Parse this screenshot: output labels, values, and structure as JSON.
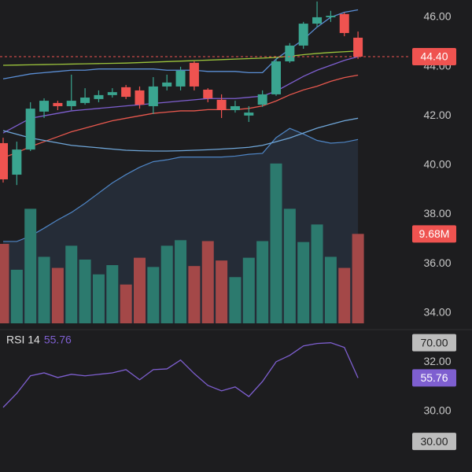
{
  "chart_data": [
    {
      "type": "candlestick",
      "open": [
        40.89,
        39.61,
        40.63,
        42.17,
        42.52,
        42.39,
        42.52,
        42.68,
        42.84,
        43.16,
        43.03,
        42.39,
        43.19,
        43.19,
        44.15,
        43.06,
        42.65,
        42.23,
        42.01,
        42.45,
        42.87,
        44.21,
        44.85,
        45.74,
        46.0,
        46.13,
        45.17
      ],
      "high": [
        41.11,
        40.95,
        42.55,
        42.71,
        42.61,
        43.67,
        43.12,
        43.03,
        43.12,
        43.25,
        43.19,
        43.57,
        43.67,
        43.99,
        44.21,
        43.12,
        42.87,
        42.61,
        42.39,
        43.03,
        44.31,
        44.95,
        45.81,
        46.64,
        46.26,
        46.19,
        45.42
      ],
      "low": [
        39.29,
        39.19,
        40.57,
        41.91,
        42.23,
        42.23,
        42.45,
        42.55,
        42.74,
        42.68,
        42.29,
        42.07,
        43.03,
        43.03,
        43.03,
        42.55,
        41.91,
        42.13,
        41.75,
        42.36,
        42.81,
        44.15,
        44.72,
        45.6,
        45.81,
        45.23,
        44.31
      ],
      "close": [
        39.42,
        40.63,
        42.29,
        42.61,
        42.39,
        42.61,
        42.74,
        42.84,
        42.96,
        42.77,
        42.45,
        43.19,
        43.35,
        43.83,
        43.19,
        42.71,
        42.23,
        42.39,
        42.13,
        42.87,
        44.21,
        44.85,
        45.74,
        46.0,
        46.06,
        45.36,
        44.4
      ],
      "up_color": "#3aa590",
      "down_color": "#ef5350",
      "ylim": [
        30,
        46.7
      ],
      "yticks": [
        {
          "value": 46,
          "label": "46.00"
        },
        {
          "value": 44,
          "label": "44.00"
        },
        {
          "value": 42,
          "label": "42.00"
        },
        {
          "value": 40,
          "label": "40.00"
        },
        {
          "value": 38,
          "label": "38.00"
        },
        {
          "value": 36,
          "label": "36.00"
        },
        {
          "value": 34,
          "label": "34.00"
        },
        {
          "value": 32,
          "label": "32.00"
        },
        {
          "value": 30,
          "label": "30.00"
        }
      ],
      "last_price_label": "44.40",
      "overlays": [
        {
          "color": "#5b8fd6",
          "values": [
            43.5,
            43.6,
            43.7,
            43.75,
            43.8,
            43.85,
            43.85,
            43.9,
            43.9,
            43.9,
            43.9,
            43.9,
            43.85,
            43.85,
            43.85,
            43.8,
            43.8,
            43.8,
            43.75,
            43.75,
            44.3,
            44.7,
            45.1,
            45.6,
            46.0,
            46.2,
            46.3
          ]
        },
        {
          "color": "#7e5fd0",
          "values": [
            41.3,
            41.6,
            41.9,
            42.0,
            42.1,
            42.2,
            42.25,
            42.3,
            42.35,
            42.4,
            42.45,
            42.5,
            42.55,
            42.6,
            42.65,
            42.7,
            42.7,
            42.7,
            42.75,
            42.8,
            43.0,
            43.3,
            43.6,
            43.85,
            44.05,
            44.25,
            44.4
          ]
        },
        {
          "color": "#e8584e",
          "values": [
            40.3,
            40.5,
            40.75,
            40.95,
            41.15,
            41.35,
            41.5,
            41.65,
            41.8,
            41.9,
            42.0,
            42.1,
            42.15,
            42.2,
            42.2,
            42.25,
            42.25,
            42.25,
            42.3,
            42.4,
            42.6,
            42.85,
            43.05,
            43.2,
            43.4,
            43.55,
            43.65
          ]
        },
        {
          "color": "#9cc43c",
          "values": [
            44.05,
            44.06,
            44.07,
            44.08,
            44.09,
            44.1,
            44.11,
            44.12,
            44.13,
            44.14,
            44.16,
            44.18,
            44.2,
            44.22,
            44.24,
            44.26,
            44.28,
            44.3,
            44.32,
            44.34,
            44.37,
            44.42,
            44.48,
            44.53,
            44.57,
            44.6,
            44.63
          ]
        },
        {
          "color": "#6fa6d8",
          "values": [
            41.4,
            41.25,
            41.1,
            41.0,
            40.9,
            40.8,
            40.75,
            40.7,
            40.65,
            40.6,
            40.58,
            40.57,
            40.57,
            40.58,
            40.6,
            40.62,
            40.65,
            40.68,
            40.72,
            40.8,
            40.95,
            41.1,
            41.3,
            41.5,
            41.65,
            41.8,
            41.9
          ]
        }
      ],
      "volume": [
        8.6,
        5.8,
        12.4,
        7.2,
        6.0,
        8.4,
        6.9,
        5.3,
        6.3,
        4.2,
        7.1,
        6.1,
        8.4,
        9.0,
        6.2,
        8.9,
        6.8,
        5.0,
        7.1,
        8.9,
        17.3,
        12.4,
        8.8,
        10.7,
        7.2,
        6.0,
        9.68
      ],
      "volume_up_color": "#2c7a6e",
      "volume_down_color": "#a44848",
      "volume_ylim": [
        0,
        35
      ],
      "last_volume_label": "9.68M",
      "volume_ma": {
        "color": "#4f86c6",
        "values": [
          8.86,
          8.86,
          9.45,
          10.3,
          11.2,
          12.0,
          13.0,
          14.1,
          15.2,
          16.1,
          16.9,
          17.5,
          17.7,
          18.0,
          18.0,
          18.0,
          18.0,
          18.1,
          18.3,
          18.4,
          20.1,
          21.1,
          20.5,
          19.8,
          19.5,
          19.6,
          19.9
        ]
      }
    },
    {
      "type": "line",
      "title": "RSI 14",
      "last_label": "55.76",
      "color": "#7e5fd0",
      "values": [
        43.8,
        49.5,
        56.6,
        57.8,
        55.9,
        57.2,
        56.6,
        57.2,
        57.8,
        59.1,
        55.0,
        59.1,
        59.4,
        63.0,
        57.5,
        52.7,
        50.5,
        52.1,
        48.2,
        54.3,
        62.3,
        64.9,
        68.7,
        69.7,
        70.0,
        68.1,
        55.76
      ],
      "ylim": [
        24,
        75
      ],
      "yticks": [
        {
          "value": 70,
          "label": "70.00"
        },
        {
          "value": 30,
          "label": "30.00"
        }
      ]
    }
  ]
}
